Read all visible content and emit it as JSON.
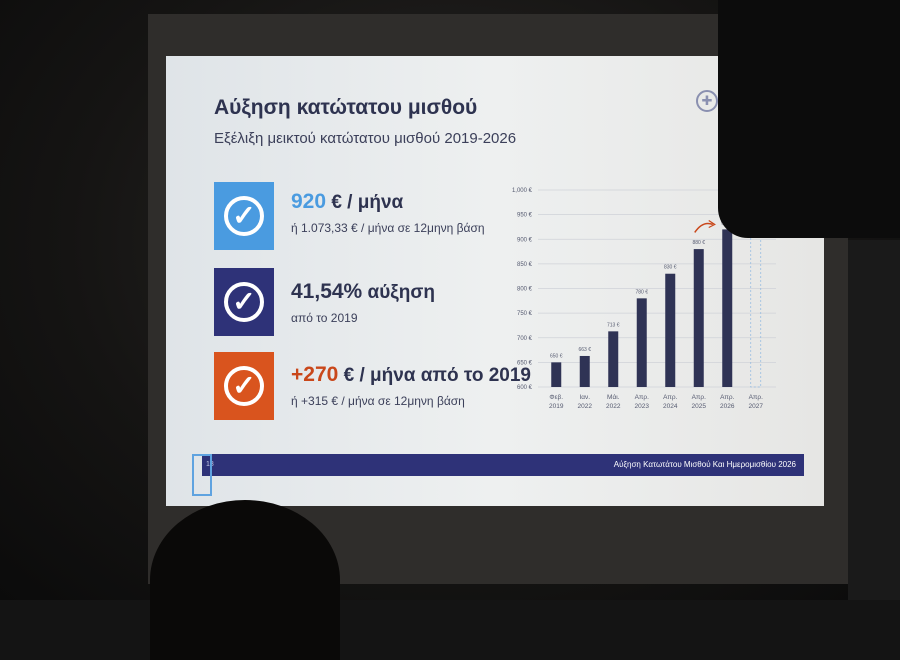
{
  "slide": {
    "title": "Αύξηση κατώτατου μισθού",
    "subtitle": "Εξέλιξη μεικτού κατώτατου μισθού 2019-2026",
    "kpis": [
      {
        "value": "920",
        "unit": "€ / μήνα",
        "note": "ή 1.073,33 € / μήνα σε 12μηνη βάση",
        "color": "#4a9be0",
        "value_color": "#4a9be0"
      },
      {
        "value": "41,54%",
        "unit": "αύξηση",
        "note": "από το 2019",
        "color": "#2e3278",
        "value_color": "#2e3350"
      },
      {
        "value": "+270",
        "unit": "€ / μήνα από το 2019",
        "note": "ή +315 € / μήνα σε 12μηνη βάση",
        "color": "#d9541e",
        "value_color": "#c9471a"
      }
    ],
    "footer": {
      "page": "18",
      "text": "Αύξηση Κατωτάτου Μισθού Και Ημερομισθίου 2026"
    }
  },
  "chart_data": {
    "type": "bar",
    "categories": [
      "Φεβ. 2019",
      "Ιαν. 2022",
      "Μάι. 2022",
      "Απρ. 2023",
      "Απρ. 2024",
      "Απρ. 2025",
      "Απρ. 2026",
      "Απρ. 2027"
    ],
    "values": [
      650,
      663,
      713,
      780,
      830,
      880,
      920,
      null
    ],
    "data_labels": [
      "650 €",
      "663 €",
      "713 €",
      "780 €",
      "830 €",
      "880 €",
      "920 €",
      ""
    ],
    "ylim": [
      600,
      1000
    ],
    "yticks": [
      "600 €",
      "650 €",
      "700 €",
      "750 €",
      "800 €",
      "850 €",
      "900 €",
      "950 €",
      "1,000 €"
    ],
    "grid": true,
    "bar_color": "#2f3355",
    "annotation": "arrow-up-right",
    "annotation_color": "#c9471a"
  }
}
